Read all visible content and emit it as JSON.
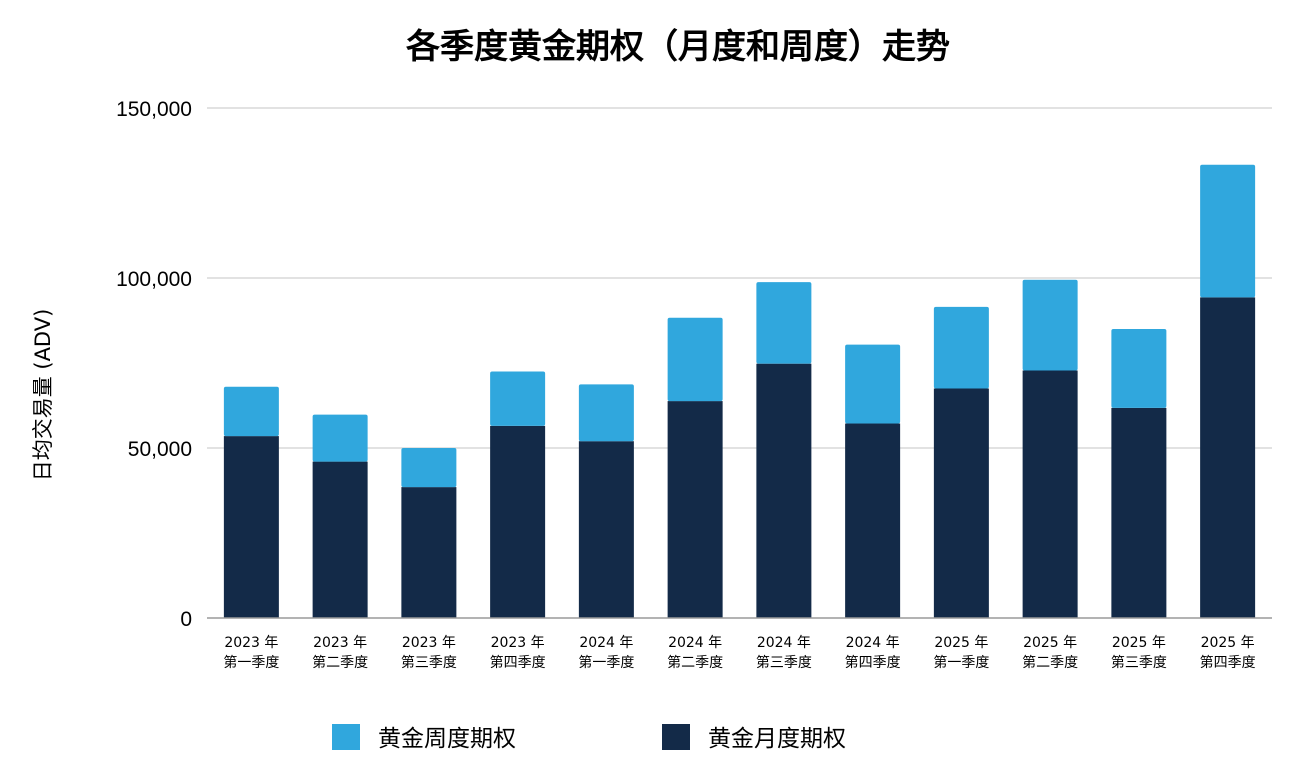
{
  "chart_data": {
    "type": "bar",
    "stacked": true,
    "title": "各季度黄金期权（月度和周度）走势",
    "ylabel": "日均交易量 (ADV)",
    "xlabel": "",
    "ylim": [
      0,
      150000
    ],
    "yticks": [
      0,
      50000,
      100000,
      150000
    ],
    "ytick_labels": [
      "0",
      "50,000",
      "100,000",
      "150,000"
    ],
    "grid": true,
    "legend_position": "bottom",
    "categories": [
      [
        "2023 年",
        "第一季度"
      ],
      [
        "2023 年",
        "第二季度"
      ],
      [
        "2023 年",
        "第三季度"
      ],
      [
        "2023 年",
        "第四季度"
      ],
      [
        "2024 年",
        "第一季度"
      ],
      [
        "2024 年",
        "第二季度"
      ],
      [
        "2024 年",
        "第三季度"
      ],
      [
        "2024 年",
        "第四季度"
      ],
      [
        "2025 年",
        "第一季度"
      ],
      [
        "2025 年",
        "第二季度"
      ],
      [
        "2025 年",
        "第三季度"
      ],
      [
        "2025 年",
        "第四季度"
      ]
    ],
    "series": [
      {
        "name": "黄金月度期权",
        "color": "#132a48",
        "values": [
          53500,
          46000,
          38500,
          56500,
          52000,
          63800,
          74800,
          57200,
          67500,
          72800,
          61800,
          94300
        ]
      },
      {
        "name": "黄金周度期权",
        "color": "#30a7dd",
        "values": [
          14500,
          13800,
          11500,
          16000,
          16700,
          24500,
          24000,
          23200,
          24000,
          26700,
          23200,
          39000
        ]
      }
    ],
    "legend_order": [
      1,
      0
    ]
  }
}
